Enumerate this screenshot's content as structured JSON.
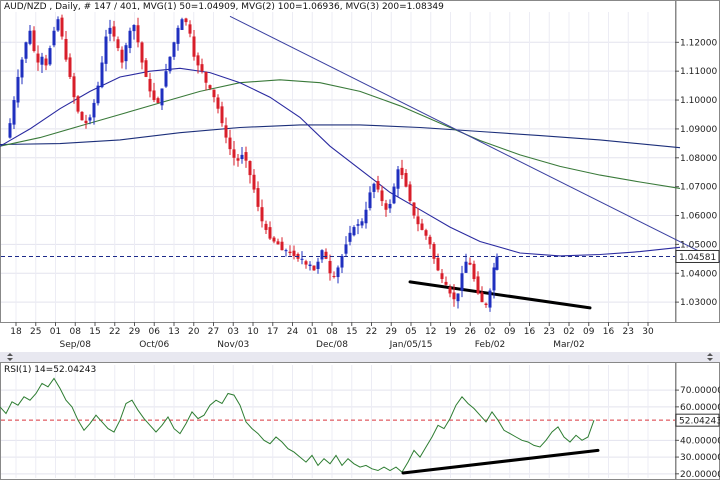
{
  "main_header": "AUD/NZD , Daily, # 147 / 401, MVG(1) 50=1.04909, MVG(2) 100=1.06936, MVG(3) 200=1.08349",
  "rsi_header": "RSI(1) 14=52.04243",
  "colors": {
    "up_candle": "#1f2fbf",
    "down_candle": "#d81e2a",
    "ma50": "#2a2aa0",
    "ma100": "#3a7a3a",
    "ma200": "#1c2f7a",
    "trend": "#3a3fa0",
    "rsi_line": "#2e7d32",
    "ref_line": "#1c2a8a",
    "rsi_ref": "#d9363e"
  },
  "chart_data": [
    {
      "type": "line",
      "title": "AUD/NZD , Daily",
      "series": [
        {
          "name": "MVG(1) 50",
          "value": 1.04909
        },
        {
          "name": "MVG(2) 100",
          "value": 1.06936
        },
        {
          "name": "MVG(3) 200",
          "value": 1.08349
        }
      ],
      "ylim": [
        1.0245,
        1.1305
      ],
      "y_ticks": [
        "1.12000",
        "1.11000",
        "1.10000",
        "1.09000",
        "1.08000",
        "1.07000",
        "1.06000",
        "1.05000",
        "1.04000",
        "1.03000"
      ],
      "y_tick_values": [
        1.12,
        1.11,
        1.1,
        1.09,
        1.08,
        1.07,
        1.06,
        1.05,
        1.04,
        1.03
      ],
      "current_price": "1.04581",
      "current_price_value": 1.04581,
      "x_ticks": [
        "18",
        "25",
        "01",
        "08",
        "15",
        "22",
        "29",
        "06",
        "13",
        "20",
        "27",
        "03",
        "10",
        "17",
        "24",
        "01",
        "08",
        "15",
        "22",
        "29",
        "05",
        "12",
        "19",
        "26",
        "02",
        "09",
        "16",
        "23",
        "02",
        "09",
        "16",
        "23",
        "30"
      ],
      "month_labels": [
        {
          "label": "Sep/08",
          "tick": 3
        },
        {
          "label": "Oct/06",
          "tick": 7
        },
        {
          "label": "Nov/03",
          "tick": 11
        },
        {
          "label": "Dec/08",
          "tick": 16
        },
        {
          "label": "Jan/05/15",
          "tick": 20
        },
        {
          "label": "Feb/02",
          "tick": 24
        },
        {
          "label": "Mar/02",
          "tick": 28
        }
      ],
      "close_path": [
        [
          0,
          1.087
        ],
        [
          4,
          1.092
        ],
        [
          8,
          1.1
        ],
        [
          12,
          1.108
        ],
        [
          16,
          1.114
        ],
        [
          20,
          1.12
        ],
        [
          24,
          1.124
        ],
        [
          28,
          1.117
        ],
        [
          32,
          1.113
        ],
        [
          36,
          1.115
        ],
        [
          40,
          1.112
        ],
        [
          44,
          1.118
        ],
        [
          48,
          1.124
        ],
        [
          52,
          1.128
        ],
        [
          56,
          1.122
        ],
        [
          60,
          1.114
        ],
        [
          64,
          1.108
        ],
        [
          68,
          1.101
        ],
        [
          72,
          1.096
        ],
        [
          76,
          1.093
        ],
        [
          80,
          1.092
        ],
        [
          84,
          1.094
        ],
        [
          88,
          1.099
        ],
        [
          92,
          1.105
        ],
        [
          96,
          1.113
        ],
        [
          100,
          1.122
        ],
        [
          104,
          1.125
        ],
        [
          108,
          1.122
        ],
        [
          112,
          1.118
        ],
        [
          116,
          1.113
        ],
        [
          120,
          1.119
        ],
        [
          124,
          1.124
        ],
        [
          128,
          1.126
        ],
        [
          132,
          1.12
        ],
        [
          136,
          1.113
        ],
        [
          140,
          1.108
        ],
        [
          144,
          1.103
        ],
        [
          148,
          1.1
        ],
        [
          152,
          1.099
        ],
        [
          156,
          1.104
        ],
        [
          160,
          1.11
        ],
        [
          164,
          1.115
        ],
        [
          168,
          1.12
        ],
        [
          172,
          1.125
        ],
        [
          176,
          1.128
        ],
        [
          180,
          1.127
        ],
        [
          184,
          1.123
        ],
        [
          188,
          1.115
        ],
        [
          192,
          1.112
        ],
        [
          196,
          1.11
        ],
        [
          200,
          1.106
        ],
        [
          204,
          1.104
        ],
        [
          208,
          1.101
        ],
        [
          212,
          1.097
        ],
        [
          216,
          1.092
        ],
        [
          220,
          1.087
        ],
        [
          224,
          1.083
        ],
        [
          228,
          1.08
        ],
        [
          232,
          1.079
        ],
        [
          236,
          1.081
        ],
        [
          240,
          1.079
        ],
        [
          244,
          1.074
        ],
        [
          248,
          1.069
        ],
        [
          252,
          1.063
        ],
        [
          256,
          1.058
        ],
        [
          260,
          1.055
        ],
        [
          264,
          1.052
        ],
        [
          268,
          1.051
        ],
        [
          272,
          1.05
        ],
        [
          276,
          1.048
        ],
        [
          280,
          1.048
        ],
        [
          284,
          1.047
        ],
        [
          288,
          1.046
        ],
        [
          292,
          1.045
        ],
        [
          296,
          1.045
        ],
        [
          300,
          1.043
        ],
        [
          304,
          1.043
        ],
        [
          308,
          1.041
        ],
        [
          312,
          1.044
        ],
        [
          316,
          1.048
        ],
        [
          320,
          1.045
        ],
        [
          324,
          1.04
        ],
        [
          328,
          1.039
        ],
        [
          332,
          1.042
        ],
        [
          336,
          1.046
        ],
        [
          340,
          1.05
        ],
        [
          344,
          1.054
        ],
        [
          348,
          1.056
        ],
        [
          352,
          1.057
        ],
        [
          356,
          1.058
        ],
        [
          360,
          1.062
        ],
        [
          364,
          1.068
        ],
        [
          368,
          1.071
        ],
        [
          372,
          1.069
        ],
        [
          376,
          1.065
        ],
        [
          380,
          1.062
        ],
        [
          384,
          1.064
        ],
        [
          388,
          1.07
        ],
        [
          392,
          1.076
        ],
        [
          396,
          1.074
        ],
        [
          400,
          1.07
        ],
        [
          404,
          1.065
        ],
        [
          408,
          1.06
        ],
        [
          412,
          1.057
        ],
        [
          416,
          1.055
        ],
        [
          420,
          1.053
        ],
        [
          424,
          1.05
        ],
        [
          428,
          1.045
        ],
        [
          432,
          1.041
        ],
        [
          436,
          1.038
        ],
        [
          440,
          1.036
        ],
        [
          444,
          1.033
        ],
        [
          448,
          1.031
        ],
        [
          452,
          1.033
        ],
        [
          456,
          1.04
        ],
        [
          460,
          1.044
        ],
        [
          464,
          1.043
        ],
        [
          468,
          1.038
        ],
        [
          472,
          1.033
        ],
        [
          476,
          1.03
        ],
        [
          480,
          1.029
        ],
        [
          484,
          1.034
        ],
        [
          488,
          1.042
        ],
        [
          491,
          1.0458
        ]
      ],
      "ma50_path": [
        [
          0,
          1.084
        ],
        [
          30,
          1.09
        ],
        [
          60,
          1.097
        ],
        [
          90,
          1.103
        ],
        [
          120,
          1.108
        ],
        [
          150,
          1.11
        ],
        [
          180,
          1.111
        ],
        [
          210,
          1.1095
        ],
        [
          240,
          1.106
        ],
        [
          270,
          1.101
        ],
        [
          300,
          1.094
        ],
        [
          330,
          1.084
        ],
        [
          360,
          1.076
        ],
        [
          390,
          1.068
        ],
        [
          420,
          1.062
        ],
        [
          450,
          1.056
        ],
        [
          480,
          1.051
        ],
        [
          520,
          1.047
        ],
        [
          560,
          1.046
        ],
        [
          600,
          1.0465
        ],
        [
          640,
          1.0475
        ],
        [
          680,
          1.049
        ]
      ],
      "ma100_path": [
        [
          0,
          1.084
        ],
        [
          40,
          1.087
        ],
        [
          80,
          1.091
        ],
        [
          120,
          1.095
        ],
        [
          160,
          1.099
        ],
        [
          200,
          1.103
        ],
        [
          240,
          1.106
        ],
        [
          280,
          1.107
        ],
        [
          320,
          1.106
        ],
        [
          360,
          1.103
        ],
        [
          400,
          1.098
        ],
        [
          440,
          1.092
        ],
        [
          480,
          1.086
        ],
        [
          520,
          1.081
        ],
        [
          560,
          1.077
        ],
        [
          600,
          1.074
        ],
        [
          640,
          1.0716
        ],
        [
          680,
          1.0694
        ]
      ],
      "ma200_path": [
        [
          0,
          1.0846
        ],
        [
          60,
          1.0849
        ],
        [
          120,
          1.0862
        ],
        [
          180,
          1.0887
        ],
        [
          240,
          1.0905
        ],
        [
          300,
          1.0914
        ],
        [
          360,
          1.0914
        ],
        [
          420,
          1.0905
        ],
        [
          480,
          1.0891
        ],
        [
          540,
          1.0877
        ],
        [
          600,
          1.0862
        ],
        [
          680,
          1.0835
        ]
      ],
      "trendline": [
        [
          230,
          1.129
        ],
        [
          720,
          1.044
        ]
      ],
      "support_line": [
        [
          410,
          1.037
        ],
        [
          590,
          1.028
        ]
      ]
    },
    {
      "type": "line",
      "title": "RSI(1) 14",
      "current_value": "52.04243",
      "current_value_num": 52.04243,
      "ylim": [
        17.5,
        85
      ],
      "y_ticks": [
        "70.00000",
        "60.00000",
        "40.00000",
        "30.00000",
        "20.00000"
      ],
      "y_tick_values": [
        70,
        60,
        40,
        30,
        20
      ],
      "rsi_path": [
        [
          0,
          60
        ],
        [
          6,
          56
        ],
        [
          12,
          63
        ],
        [
          18,
          61
        ],
        [
          24,
          66
        ],
        [
          30,
          64
        ],
        [
          36,
          68
        ],
        [
          42,
          74
        ],
        [
          48,
          72
        ],
        [
          54,
          77
        ],
        [
          60,
          71
        ],
        [
          66,
          64
        ],
        [
          72,
          60
        ],
        [
          78,
          52
        ],
        [
          84,
          46
        ],
        [
          90,
          50
        ],
        [
          96,
          55
        ],
        [
          102,
          51
        ],
        [
          108,
          47
        ],
        [
          114,
          45
        ],
        [
          120,
          52
        ],
        [
          126,
          62
        ],
        [
          132,
          64
        ],
        [
          138,
          58
        ],
        [
          144,
          53
        ],
        [
          150,
          49
        ],
        [
          156,
          45
        ],
        [
          162,
          49
        ],
        [
          168,
          54
        ],
        [
          174,
          47
        ],
        [
          180,
          44
        ],
        [
          186,
          50
        ],
        [
          192,
          57
        ],
        [
          198,
          53
        ],
        [
          204,
          55
        ],
        [
          210,
          61
        ],
        [
          216,
          64
        ],
        [
          222,
          62
        ],
        [
          228,
          68
        ],
        [
          234,
          67
        ],
        [
          240,
          61
        ],
        [
          246,
          51
        ],
        [
          252,
          47
        ],
        [
          258,
          44
        ],
        [
          264,
          40
        ],
        [
          270,
          38
        ],
        [
          276,
          42
        ],
        [
          282,
          39
        ],
        [
          288,
          35
        ],
        [
          294,
          33
        ],
        [
          300,
          30
        ],
        [
          306,
          27
        ],
        [
          312,
          31
        ],
        [
          318,
          25
        ],
        [
          324,
          29
        ],
        [
          330,
          26
        ],
        [
          336,
          31
        ],
        [
          342,
          25
        ],
        [
          348,
          29
        ],
        [
          354,
          26
        ],
        [
          360,
          24
        ],
        [
          366,
          25
        ],
        [
          372,
          23
        ],
        [
          378,
          22
        ],
        [
          384,
          24
        ],
        [
          390,
          22
        ],
        [
          396,
          24
        ],
        [
          402,
          21
        ],
        [
          408,
          27
        ],
        [
          414,
          34
        ],
        [
          420,
          30
        ],
        [
          426,
          36
        ],
        [
          432,
          42
        ],
        [
          438,
          49
        ],
        [
          444,
          47
        ],
        [
          450,
          53
        ],
        [
          456,
          61
        ],
        [
          462,
          66
        ],
        [
          468,
          62
        ],
        [
          474,
          59
        ],
        [
          480,
          55
        ],
        [
          486,
          51
        ],
        [
          492,
          57
        ],
        [
          498,
          52
        ],
        [
          504,
          46
        ],
        [
          510,
          44
        ],
        [
          516,
          42
        ],
        [
          522,
          40
        ],
        [
          528,
          39
        ],
        [
          534,
          37
        ],
        [
          540,
          36
        ],
        [
          546,
          40
        ],
        [
          552,
          45
        ],
        [
          558,
          48
        ],
        [
          564,
          42
        ],
        [
          570,
          39
        ],
        [
          576,
          43
        ],
        [
          582,
          40
        ],
        [
          588,
          42
        ],
        [
          594,
          52
        ]
      ],
      "divergence_line": [
        [
          403,
          20.5
        ],
        [
          598,
          34.0
        ]
      ]
    }
  ]
}
